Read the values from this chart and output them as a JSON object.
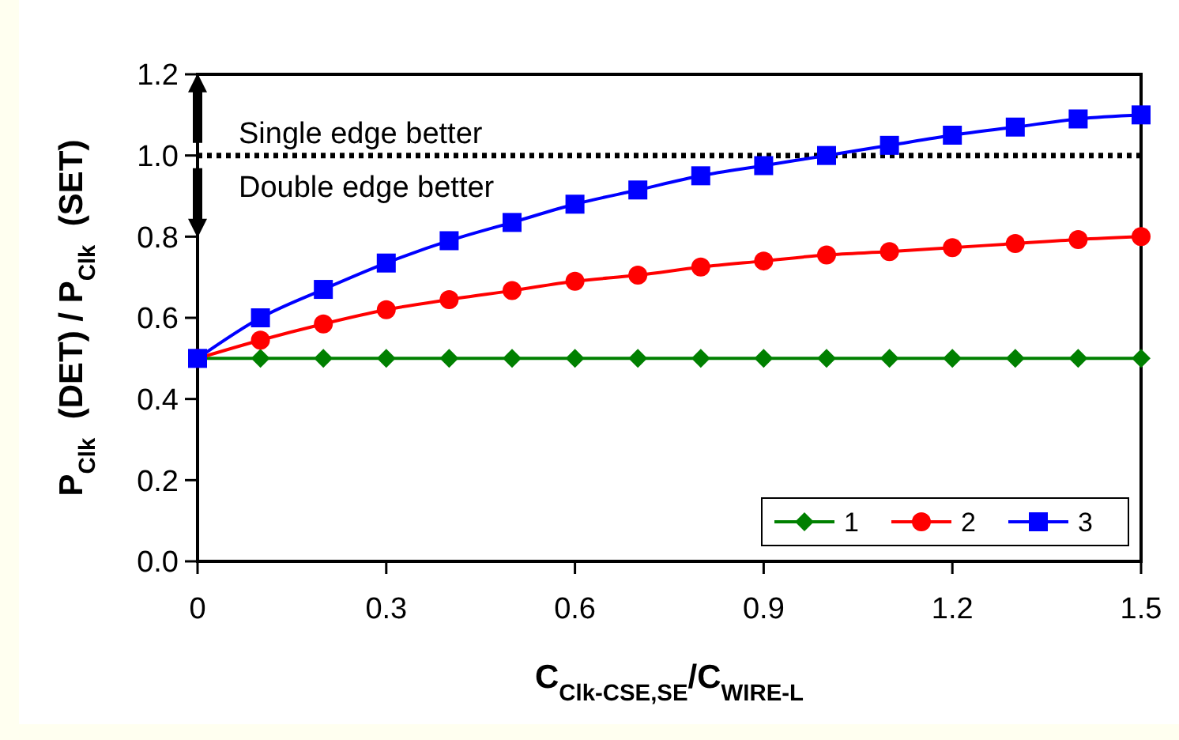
{
  "chart_data": {
    "type": "line",
    "xlabel": "C$_{Clk-CSE,SE}$/C$_{WIRE-L}$",
    "ylabel": "P$_{Clk}$  (DET) / P$_{Clk}$  (SET)",
    "x": [
      0,
      0.1,
      0.2,
      0.3,
      0.4,
      0.5,
      0.6,
      0.7,
      0.8,
      0.9,
      1.0,
      1.1,
      1.2,
      1.3,
      1.4,
      1.5
    ],
    "xlim": [
      0,
      1.5
    ],
    "xticks": [
      0,
      {
        "value": 0.3,
        "label": "0.3"
      },
      {
        "value": 0.6,
        "label": "0.6"
      },
      {
        "value": 0.9,
        "label": "0.9"
      },
      {
        "value": 1.2,
        "label": "1.2"
      },
      {
        "value": 1.5,
        "label": "1.5"
      }
    ],
    "ylim": [
      0,
      1.2
    ],
    "yticks": [
      {
        "value": 0,
        "label": "0.0"
      },
      {
        "value": 0.2,
        "label": "0.2"
      },
      {
        "value": 0.4,
        "label": "0.4"
      },
      {
        "value": 0.6,
        "label": "0.6"
      },
      {
        "value": 0.8,
        "label": "0.8"
      },
      {
        "value": 1,
        "label": "1.0"
      },
      {
        "value": 1.2,
        "label": "1.2"
      }
    ],
    "series": [
      {
        "name": "1",
        "color": "#008000",
        "marker": "diamond",
        "values": [
          0.5,
          0.5,
          0.5,
          0.5,
          0.5,
          0.5,
          0.5,
          0.5,
          0.5,
          0.5,
          0.5,
          0.5,
          0.5,
          0.5,
          0.5,
          0.5
        ]
      },
      {
        "name": "2",
        "color": "#ff0000",
        "marker": "circle",
        "values": [
          0.5,
          0.545,
          0.585,
          0.62,
          0.645,
          0.667,
          0.69,
          0.705,
          0.725,
          0.74,
          0.755,
          0.763,
          0.773,
          0.783,
          0.793,
          0.8
        ]
      },
      {
        "name": "3",
        "color": "#0000ff",
        "marker": "square",
        "values": [
          0.5,
          0.6,
          0.67,
          0.735,
          0.79,
          0.835,
          0.88,
          0.915,
          0.95,
          0.975,
          1.0,
          1.025,
          1.05,
          1.07,
          1.09,
          1.1
        ]
      }
    ],
    "ref_lines": [
      {
        "axis": "y",
        "value": 1.0,
        "color": "#000000",
        "line_style": "dotted"
      }
    ],
    "annotations": [
      "Single edge better",
      "Double edge better"
    ],
    "legend": "bottom right",
    "grid": false
  }
}
